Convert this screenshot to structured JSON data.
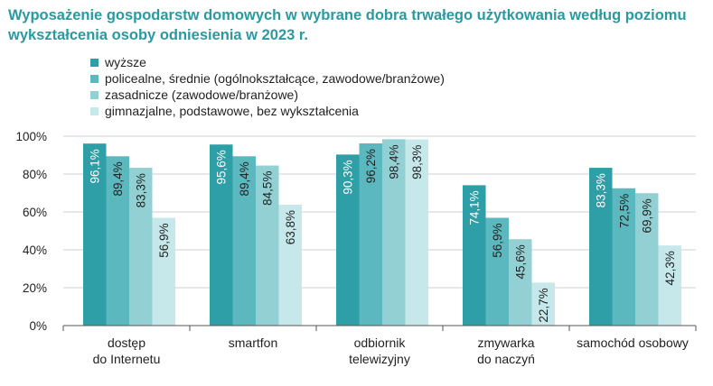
{
  "title": "Wyposażenie gospodarstw domowych w wybrane dobra trwałego użytkowania według poziomu wykształcenia osoby odniesienia w 2023 r.",
  "chart_data": {
    "type": "bar",
    "categories": [
      [
        "dostęp",
        "do Internetu"
      ],
      [
        "smartfon"
      ],
      [
        "odbiornik",
        "telewizyjny"
      ],
      [
        "zmywarka",
        "do naczyń"
      ],
      [
        "samochód osobowy"
      ]
    ],
    "series": [
      {
        "name": "wyższe",
        "color": "#2e9fa6",
        "labelColor": "#ffffff",
        "values": [
          96.1,
          95.6,
          90.3,
          74.1,
          83.3
        ]
      },
      {
        "name": "policealne, średnie (ogólnokształcące, zawodowe/branżowe)",
        "color": "#5bb8be",
        "labelColor": "#222222",
        "values": [
          89.4,
          89.4,
          96.2,
          56.9,
          72.5
        ]
      },
      {
        "name": "zasadnicze (zawodowe/branżowe)",
        "color": "#92d0d3",
        "labelColor": "#222222",
        "values": [
          83.3,
          84.5,
          98.4,
          45.6,
          69.9
        ]
      },
      {
        "name": "gimnazjalne, podstawowe, bez wykształcenia",
        "color": "#c6e8ea",
        "labelColor": "#222222",
        "values": [
          56.9,
          63.8,
          98.3,
          22.7,
          42.3
        ]
      }
    ],
    "value_labels": [
      [
        "96,1%",
        "95,6%",
        "90,3%",
        "74,1%",
        "83,3%"
      ],
      [
        "89,4%",
        "89,4%",
        "96,2%",
        "56,9%",
        "72,5%"
      ],
      [
        "83,3%",
        "84,5%",
        "98,4%",
        "45,6%",
        "69,9%"
      ],
      [
        "56,9%",
        "63,8%",
        "98,3%",
        "22,7%",
        "42,3%"
      ]
    ],
    "yticks": [
      0,
      20,
      40,
      60,
      80,
      100
    ],
    "ytick_labels": [
      "0%",
      "20%",
      "40%",
      "60%",
      "80%",
      "100%"
    ],
    "ylim": [
      0,
      100
    ],
    "grid": true,
    "legend_position": "top-left"
  }
}
